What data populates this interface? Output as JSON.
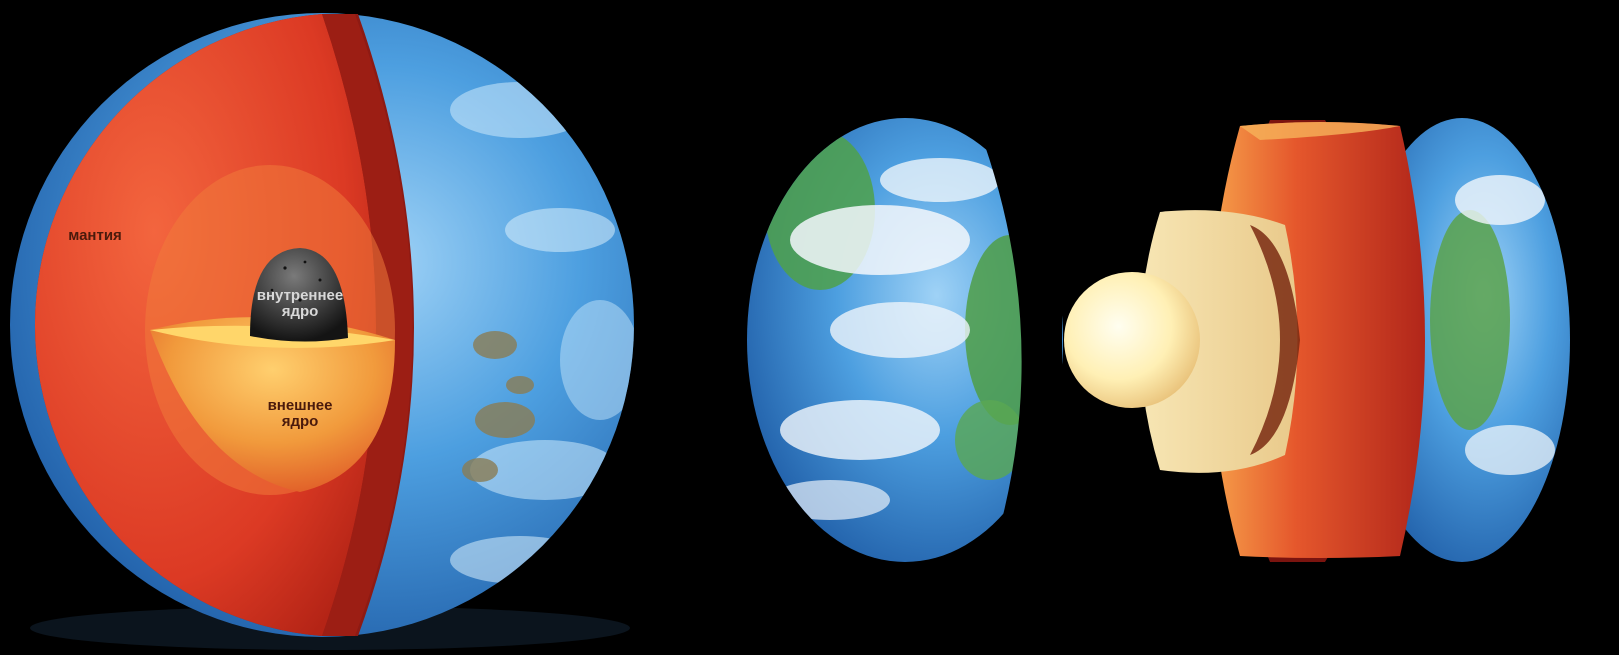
{
  "labels": {
    "mantle": "мантия",
    "inner_core_1": "внутреннее",
    "inner_core_2": "ядро",
    "outer_core_1": "внешнее",
    "outer_core_2": "ядро"
  },
  "colors": {
    "background": "#000000",
    "ocean": "#3f8fd6",
    "land": "#4fa14a",
    "cloud": "#f2f6fb",
    "crust": "#8f1a12",
    "mantle": "#e2412a",
    "outer_core": "#f29a3e",
    "inner_core_dark": "#2a2a2a",
    "inner_core_glow": "#fff2bf"
  }
}
